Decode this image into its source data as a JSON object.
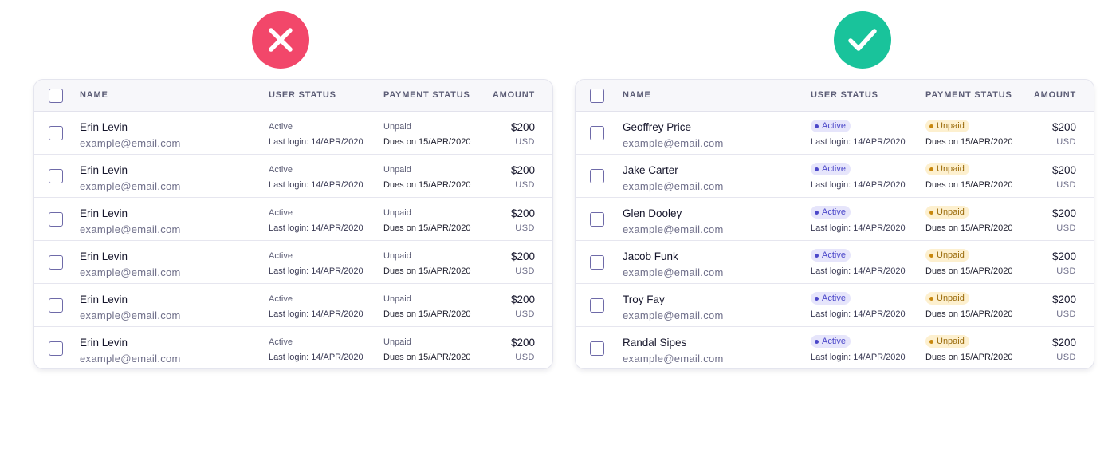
{
  "colors": {
    "bad": "#f2476a",
    "good": "#19c39b",
    "active": "#4b47c9",
    "unpaid": "#c8870d"
  },
  "icons": {
    "bad": "x-icon",
    "good": "check-icon"
  },
  "headers": {
    "name": "NAME",
    "user_status": "USER STATUS",
    "payment_status": "PAYMENT STATUS",
    "amount": "AMOUNT"
  },
  "bad_rows": [
    {
      "name": "Erin Levin",
      "email": "example@email.com",
      "user_status": "Active",
      "last_login": "Last login: 14/APR/2020",
      "payment_status": "Unpaid",
      "dues": "Dues on 15/APR/2020",
      "amount": "$200",
      "currency": "USD"
    },
    {
      "name": "Erin Levin",
      "email": "example@email.com",
      "user_status": "Active",
      "last_login": "Last login: 14/APR/2020",
      "payment_status": "Unpaid",
      "dues": "Dues on 15/APR/2020",
      "amount": "$200",
      "currency": "USD"
    },
    {
      "name": "Erin Levin",
      "email": "example@email.com",
      "user_status": "Active",
      "last_login": "Last login: 14/APR/2020",
      "payment_status": "Unpaid",
      "dues": "Dues on 15/APR/2020",
      "amount": "$200",
      "currency": "USD"
    },
    {
      "name": "Erin Levin",
      "email": "example@email.com",
      "user_status": "Active",
      "last_login": "Last login: 14/APR/2020",
      "payment_status": "Unpaid",
      "dues": "Dues on 15/APR/2020",
      "amount": "$200",
      "currency": "USD"
    },
    {
      "name": "Erin Levin",
      "email": "example@email.com",
      "user_status": "Active",
      "last_login": "Last login: 14/APR/2020",
      "payment_status": "Unpaid",
      "dues": "Dues on 15/APR/2020",
      "amount": "$200",
      "currency": "USD"
    },
    {
      "name": "Erin Levin",
      "email": "example@email.com",
      "user_status": "Active",
      "last_login": "Last login: 14/APR/2020",
      "payment_status": "Unpaid",
      "dues": "Dues on 15/APR/2020",
      "amount": "$200",
      "currency": "USD"
    }
  ],
  "good_rows": [
    {
      "name": "Geoffrey Price",
      "email": "example@email.com",
      "user_status": "Active",
      "last_login": "Last login: 14/APR/2020",
      "payment_status": "Unpaid",
      "dues": "Dues on 15/APR/2020",
      "amount": "$200",
      "currency": "USD"
    },
    {
      "name": "Jake Carter",
      "email": "example@email.com",
      "user_status": "Active",
      "last_login": "Last login: 14/APR/2020",
      "payment_status": "Unpaid",
      "dues": "Dues on 15/APR/2020",
      "amount": "$200",
      "currency": "USD"
    },
    {
      "name": "Glen Dooley",
      "email": "example@email.com",
      "user_status": "Active",
      "last_login": "Last login: 14/APR/2020",
      "payment_status": "Unpaid",
      "dues": "Dues on 15/APR/2020",
      "amount": "$200",
      "currency": "USD"
    },
    {
      "name": "Jacob Funk",
      "email": "example@email.com",
      "user_status": "Active",
      "last_login": "Last login: 14/APR/2020",
      "payment_status": "Unpaid",
      "dues": "Dues on 15/APR/2020",
      "amount": "$200",
      "currency": "USD"
    },
    {
      "name": "Troy Fay",
      "email": "example@email.com",
      "user_status": "Active",
      "last_login": "Last login: 14/APR/2020",
      "payment_status": "Unpaid",
      "dues": "Dues on 15/APR/2020",
      "amount": "$200",
      "currency": "USD"
    },
    {
      "name": "Randal Sipes",
      "email": "example@email.com",
      "user_status": "Active",
      "last_login": "Last login: 14/APR/2020",
      "payment_status": "Unpaid",
      "dues": "Dues on 15/APR/2020",
      "amount": "$200",
      "currency": "USD"
    }
  ]
}
